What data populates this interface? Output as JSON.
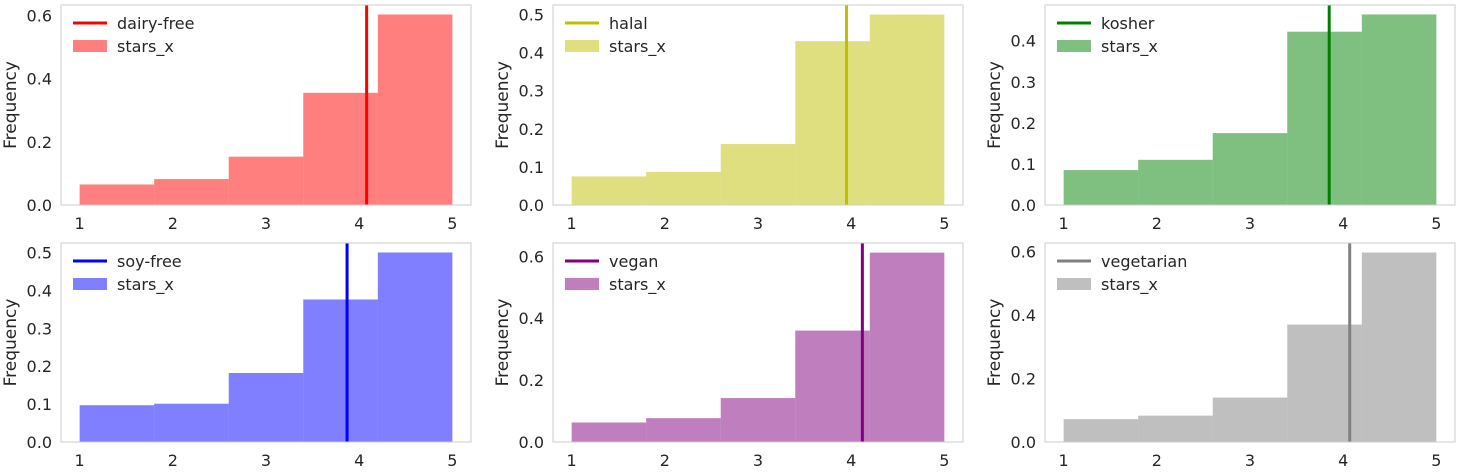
{
  "chart_data": [
    {
      "type": "bar",
      "bin_edges": [
        1.0,
        1.8,
        2.6,
        3.4,
        4.2,
        5.0
      ],
      "values": [
        0.065,
        0.082,
        0.153,
        0.355,
        0.603
      ],
      "mean_line": 4.08,
      "line_label": "dairy-free",
      "bar_label": "stars_x",
      "color": "#ff0000",
      "xlabel": "",
      "ylabel": "Frequency",
      "xticks": [
        1,
        2,
        3,
        4,
        5
      ],
      "yticks": [
        0.0,
        0.2,
        0.4,
        0.6
      ],
      "xlim": [
        0.8,
        5.2
      ],
      "ylim": [
        0,
        0.633
      ],
      "legend": "top-left",
      "grid": false
    },
    {
      "type": "bar",
      "bin_edges": [
        1.0,
        1.8,
        2.6,
        3.4,
        4.2,
        5.0
      ],
      "values": [
        0.075,
        0.087,
        0.16,
        0.43,
        0.5
      ],
      "mean_line": 3.95,
      "line_label": "halal",
      "bar_label": "stars_x",
      "color": "#bfbf00",
      "xlabel": "",
      "ylabel": "Frequency",
      "xticks": [
        1,
        2,
        3,
        4,
        5
      ],
      "yticks": [
        0.0,
        0.1,
        0.2,
        0.3,
        0.4,
        0.5
      ],
      "xlim": [
        0.8,
        5.2
      ],
      "ylim": [
        0,
        0.525
      ],
      "legend": "top-left",
      "grid": false
    },
    {
      "type": "bar",
      "bin_edges": [
        1.0,
        1.8,
        2.6,
        3.4,
        4.2,
        5.0
      ],
      "values": [
        0.085,
        0.11,
        0.175,
        0.422,
        0.464
      ],
      "mean_line": 3.85,
      "line_label": "kosher",
      "bar_label": "stars_x",
      "color": "#008000",
      "xlabel": "",
      "ylabel": "Frequency",
      "xticks": [
        1,
        2,
        3,
        4,
        5
      ],
      "yticks": [
        0.0,
        0.1,
        0.2,
        0.3,
        0.4
      ],
      "xlim": [
        0.8,
        5.2
      ],
      "ylim": [
        0,
        0.487
      ],
      "legend": "top-left",
      "grid": false
    },
    {
      "type": "bar",
      "bin_edges": [
        1.0,
        1.8,
        2.6,
        3.4,
        4.2,
        5.0
      ],
      "values": [
        0.097,
        0.101,
        0.182,
        0.376,
        0.5
      ],
      "mean_line": 3.87,
      "line_label": "soy-free",
      "bar_label": "stars_x",
      "color": "#0000ff",
      "xlabel": "",
      "ylabel": "Frequency",
      "xticks": [
        1,
        2,
        3,
        4,
        5
      ],
      "yticks": [
        0.0,
        0.1,
        0.2,
        0.3,
        0.4,
        0.5
      ],
      "xlim": [
        0.8,
        5.2
      ],
      "ylim": [
        0,
        0.525
      ],
      "legend": "top-left",
      "grid": false
    },
    {
      "type": "bar",
      "bin_edges": [
        1.0,
        1.8,
        2.6,
        3.4,
        4.2,
        5.0
      ],
      "values": [
        0.063,
        0.077,
        0.142,
        0.36,
        0.612
      ],
      "mean_line": 4.12,
      "line_label": "vegan",
      "bar_label": "stars_x",
      "color": "#800080",
      "xlabel": "",
      "ylabel": "Frequency",
      "xticks": [
        1,
        2,
        3,
        4,
        5
      ],
      "yticks": [
        0.0,
        0.2,
        0.4,
        0.6
      ],
      "xlim": [
        0.8,
        5.2
      ],
      "ylim": [
        0,
        0.643
      ],
      "legend": "top-left",
      "grid": false
    },
    {
      "type": "bar",
      "bin_edges": [
        1.0,
        1.8,
        2.6,
        3.4,
        4.2,
        5.0
      ],
      "values": [
        0.072,
        0.083,
        0.14,
        0.37,
        0.597
      ],
      "mean_line": 4.07,
      "line_label": "vegetarian",
      "bar_label": "stars_x",
      "color": "#808080",
      "xlabel": "",
      "ylabel": "Frequency",
      "xticks": [
        1,
        2,
        3,
        4,
        5
      ],
      "yticks": [
        0.0,
        0.2,
        0.4,
        0.6
      ],
      "xlim": [
        0.8,
        5.2
      ],
      "ylim": [
        0,
        0.627
      ],
      "legend": "top-left",
      "grid": false
    }
  ]
}
